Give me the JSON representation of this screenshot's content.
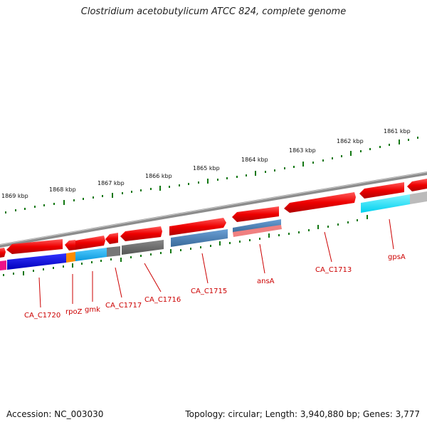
{
  "title": "Clostridium acetobutylicum ATCC 824, complete genome",
  "footer": {
    "accession": "Accession: NC_003030",
    "topology": "Topology: circular; Length: 3,940,880 bp; Genes: 3,777"
  },
  "ticks": [
    "1861 kbp",
    "1862 kbp",
    "1863 kbp",
    "1864 kbp",
    "1865 kbp",
    "1866 kbp",
    "1867 kbp",
    "1868 kbp",
    "1869 kbp"
  ],
  "genes": [
    "gpsA",
    "CA_C1713",
    "ansA",
    "CA_C1715",
    "CA_C1716",
    "CA_C1717",
    "gmk",
    "rpoZ",
    "CA_C1720"
  ],
  "colors": {
    "backbone": "#888888",
    "gene_red": "#ee0000",
    "label_red": "#cc0000",
    "tick_green": "#117711",
    "cyan": "#00e5ff",
    "steel_blue": "#4a7fb5",
    "salmon": "#f08080",
    "gray": "#666666",
    "light_gray": "#bbbbbb",
    "blue": "#0000dd",
    "orange": "#ff8c00",
    "sky": "#11aaee",
    "magenta": "#ee1188"
  }
}
